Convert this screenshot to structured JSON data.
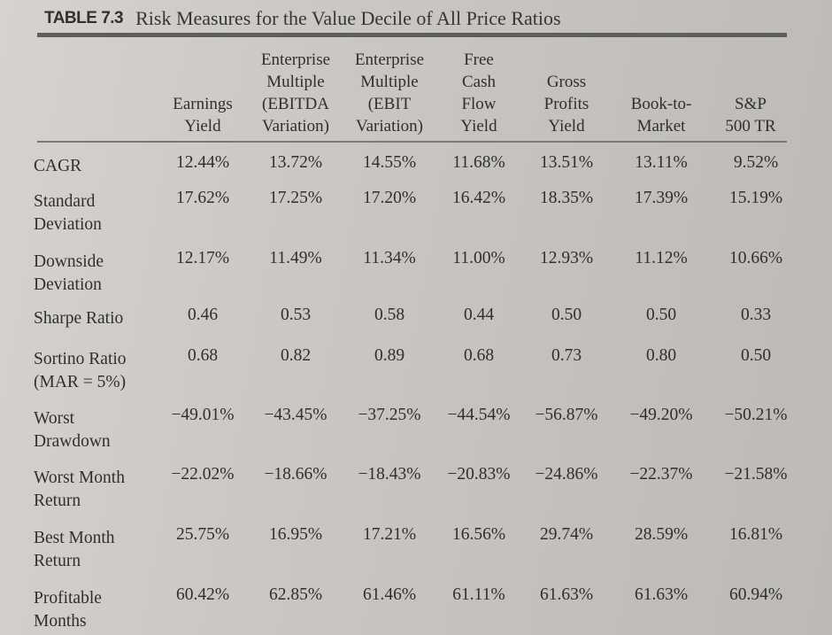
{
  "table": {
    "label": "TABLE 7.3",
    "title": "Risk Measures for the Value Decile of All Price Ratios",
    "columns": [
      {
        "lines": [
          "Earnings",
          "Yield"
        ]
      },
      {
        "lines": [
          "Enterprise",
          "Multiple",
          "(EBITDA",
          "Variation)"
        ]
      },
      {
        "lines": [
          "Enterprise",
          "Multiple",
          "(EBIT",
          "Variation)"
        ]
      },
      {
        "lines": [
          "Free",
          "Cash",
          "Flow",
          "Yield"
        ]
      },
      {
        "lines": [
          "Gross",
          "Profits",
          "Yield"
        ]
      },
      {
        "lines": [
          "Book-to-",
          "Market"
        ]
      },
      {
        "lines": [
          "S&P",
          "500 TR"
        ]
      }
    ],
    "rows": [
      {
        "label": [
          "CAGR"
        ],
        "values": [
          "12.44%",
          "13.72%",
          "14.55%",
          "11.68%",
          "13.51%",
          "13.11%",
          "9.52%"
        ]
      },
      {
        "label": [
          "Standard",
          "Deviation"
        ],
        "values": [
          "17.62%",
          "17.25%",
          "17.20%",
          "16.42%",
          "18.35%",
          "17.39%",
          "15.19%"
        ]
      },
      {
        "label": [
          "Downside",
          "Deviation"
        ],
        "values": [
          "12.17%",
          "11.49%",
          "11.34%",
          "11.00%",
          "12.93%",
          "11.12%",
          "10.66%"
        ]
      },
      {
        "label": [
          "Sharpe Ratio"
        ],
        "values": [
          "0.46",
          "0.53",
          "0.58",
          "0.44",
          "0.50",
          "0.50",
          "0.33"
        ]
      },
      {
        "label": [
          "Sortino Ratio",
          "(MAR = 5%)"
        ],
        "values": [
          "0.68",
          "0.82",
          "0.89",
          "0.68",
          "0.73",
          "0.80",
          "0.50"
        ]
      },
      {
        "label": [
          "Worst",
          "Drawdown"
        ],
        "values": [
          "−49.01%",
          "−43.45%",
          "−37.25%",
          "−44.54%",
          "−56.87%",
          "−49.20%",
          "−50.21%"
        ]
      },
      {
        "label": [
          "Worst Month",
          "Return"
        ],
        "values": [
          "−22.02%",
          "−18.66%",
          "−18.43%",
          "−20.83%",
          "−24.86%",
          "−22.37%",
          "−21.58%"
        ]
      },
      {
        "label": [
          "Best Month",
          "Return"
        ],
        "values": [
          "25.75%",
          "16.95%",
          "17.21%",
          "16.56%",
          "29.74%",
          "28.59%",
          "16.81%"
        ]
      },
      {
        "label": [
          "Profitable",
          "Months"
        ],
        "values": [
          "60.42%",
          "62.85%",
          "61.46%",
          "61.11%",
          "61.63%",
          "61.63%",
          "60.94%"
        ]
      }
    ]
  }
}
